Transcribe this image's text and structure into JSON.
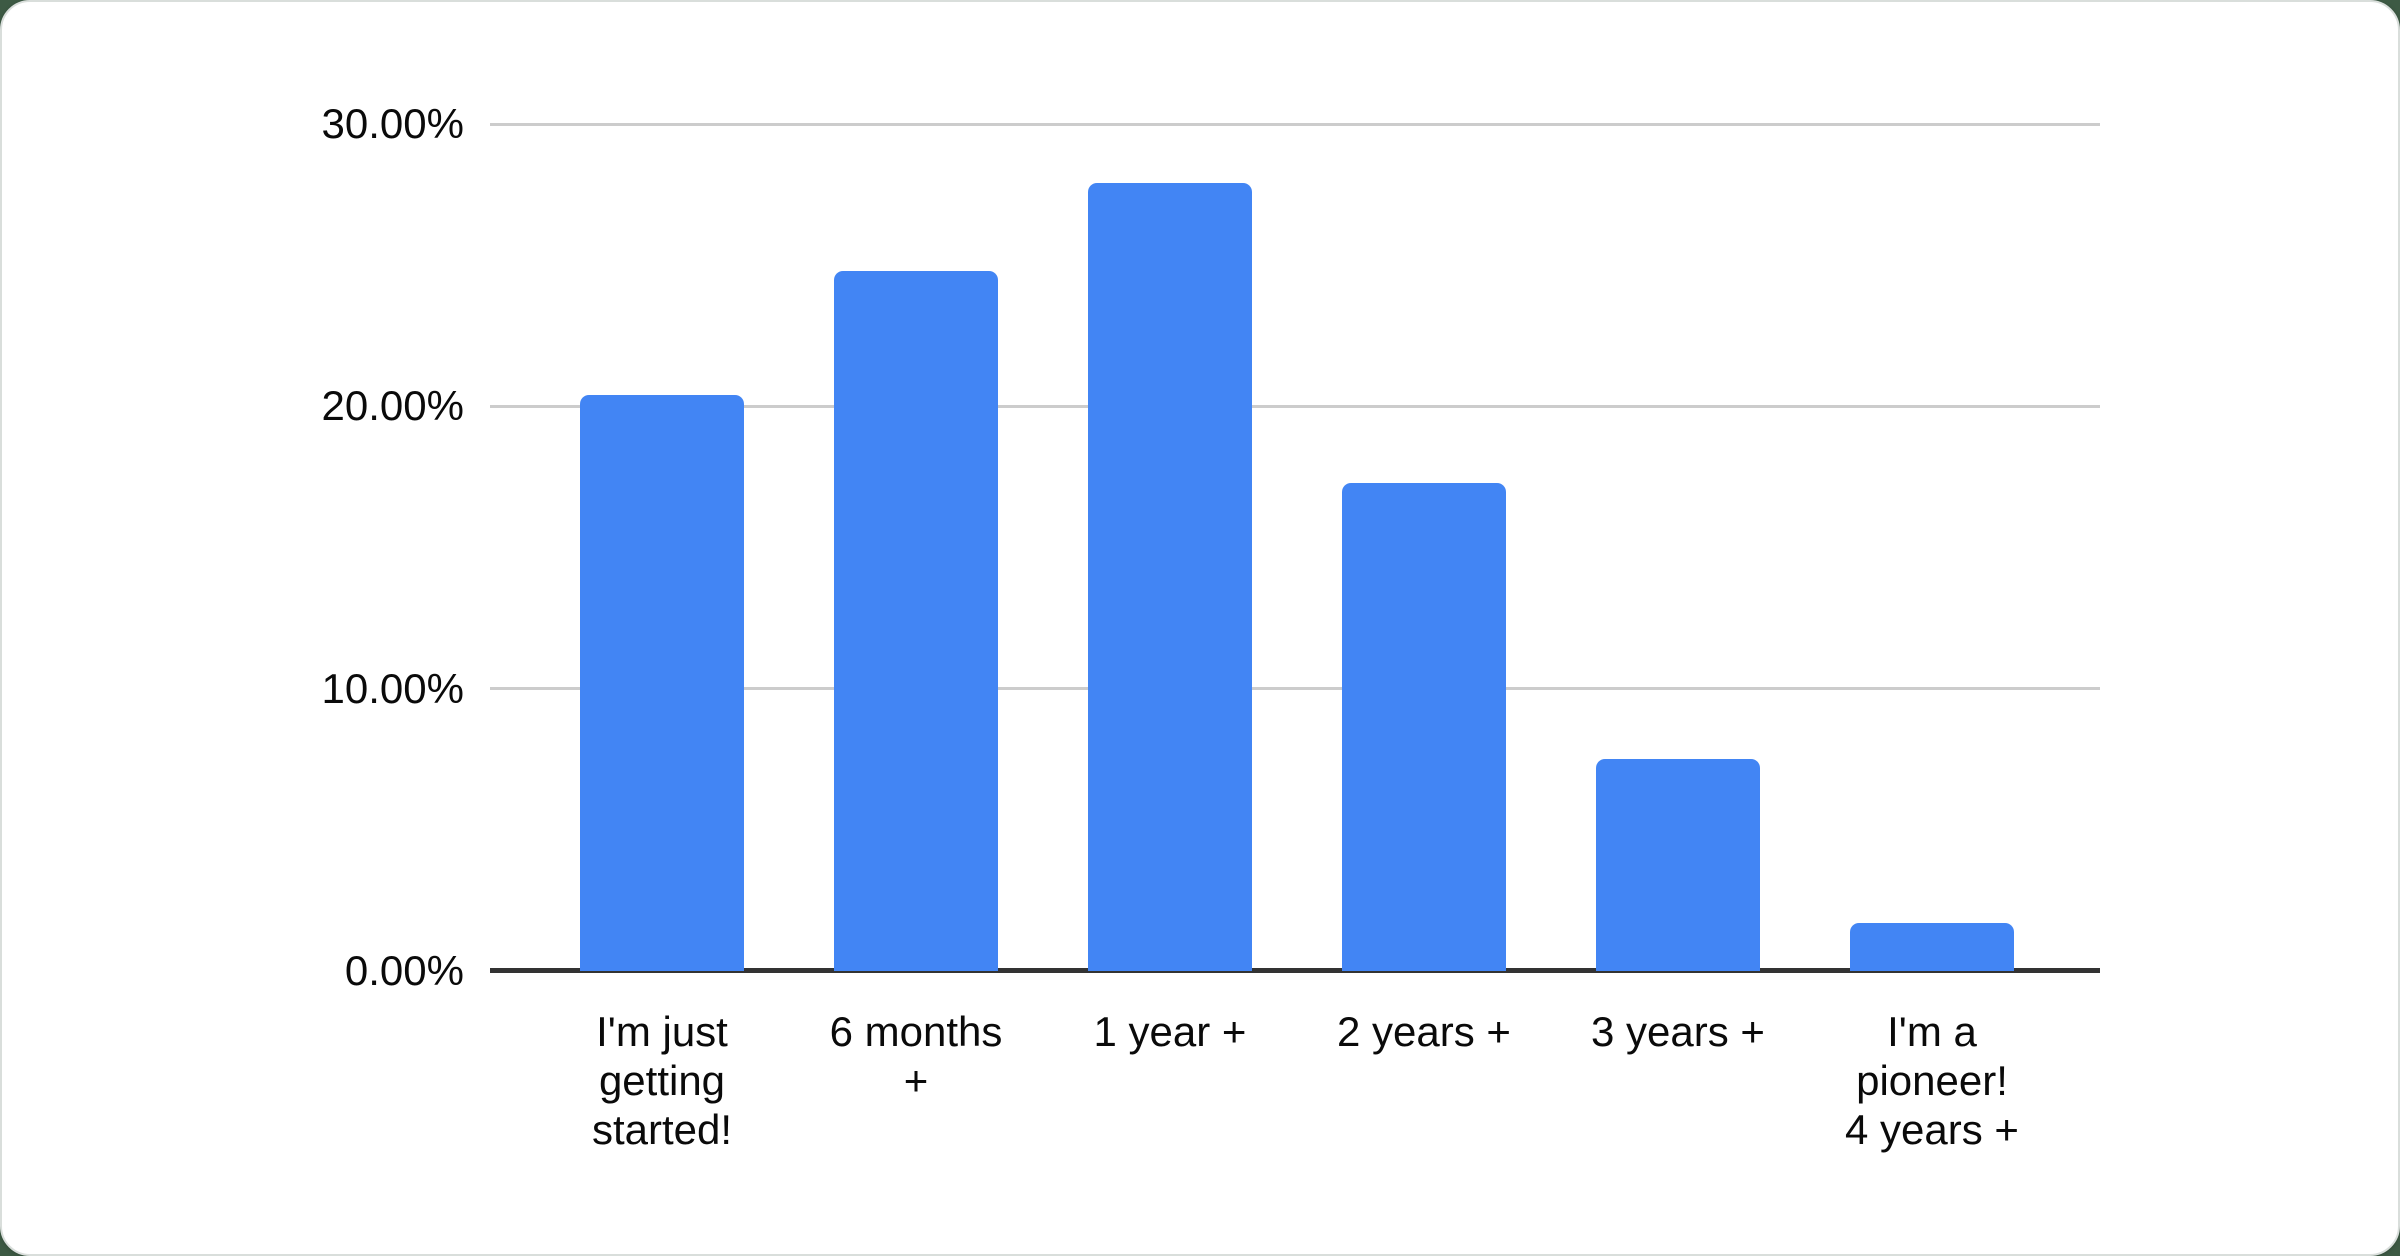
{
  "page": {
    "background_color": "#3d5a44",
    "card_background": "#ffffff",
    "card_border_color": "#d9dedb"
  },
  "chart_data": {
    "type": "bar",
    "title": "",
    "xlabel": "",
    "ylabel": "",
    "categories": [
      "I'm just getting started!",
      "6 months +",
      "1 year +",
      "2 years +",
      "3 years +",
      "I'm a pioneer! 4 years +"
    ],
    "category_display": [
      "I'm just\ngetting\nstarted!",
      "6 months\n+",
      "1 year +",
      "2 years +",
      "3 years +",
      "I'm a\npioneer!\n4 years +"
    ],
    "values": [
      20.4,
      24.8,
      27.9,
      17.3,
      7.5,
      1.7
    ],
    "unit": "%",
    "ylim": [
      0,
      30
    ],
    "yticks": [
      0,
      10,
      20,
      30
    ],
    "ytick_labels": [
      "0.00%",
      "10.00%",
      "20.00%",
      "30.00%"
    ],
    "grid": "horizontal",
    "legend": "none",
    "bar_color": "#4285f4",
    "gridline_color": "#cccccc",
    "axis_line_color": "#333333",
    "text_color": "#0a0a0a"
  }
}
